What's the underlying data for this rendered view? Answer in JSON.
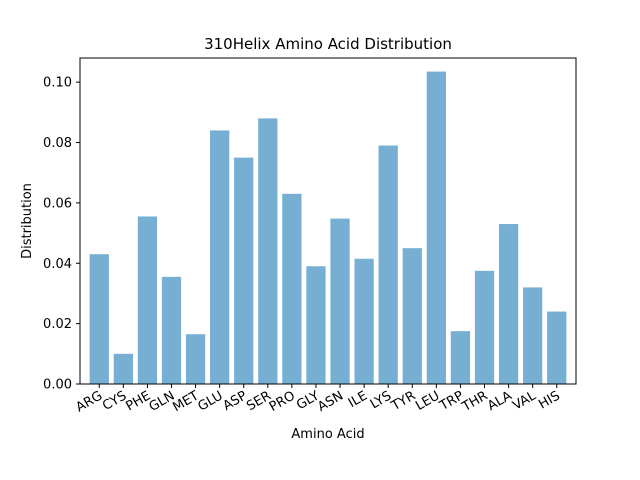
{
  "chart_data": {
    "type": "bar",
    "title": "310Helix Amino Acid Distribution",
    "xlabel": "Amino Acid",
    "ylabel": "Distribution",
    "categories": [
      "ARG",
      "CYS",
      "PHE",
      "GLN",
      "MET",
      "GLU",
      "ASP",
      "SER",
      "PRO",
      "GLY",
      "ASN",
      "ILE",
      "LYS",
      "TYR",
      "LEU",
      "TRP",
      "THR",
      "ALA",
      "VAL",
      "HIS"
    ],
    "values": [
      0.043,
      0.01,
      0.0555,
      0.0355,
      0.0165,
      0.084,
      0.075,
      0.088,
      0.063,
      0.039,
      0.0548,
      0.0415,
      0.079,
      0.045,
      0.1035,
      0.0175,
      0.0375,
      0.053,
      0.032,
      0.024
    ],
    "ylim": [
      0,
      0.108
    ],
    "yticks": [
      "0.00",
      "0.02",
      "0.04",
      "0.06",
      "0.08",
      "0.10"
    ],
    "grid": false,
    "bar_color": "#77afd3"
  }
}
